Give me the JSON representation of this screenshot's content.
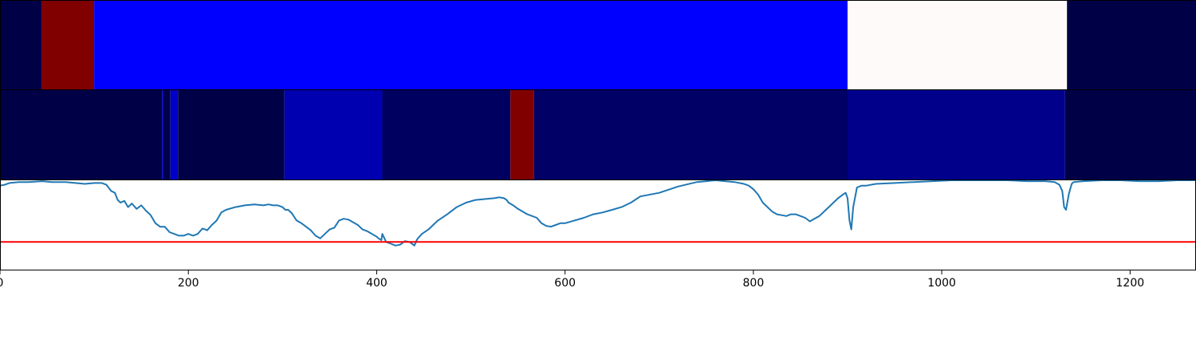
{
  "chart_data": {
    "type": "line",
    "title": "",
    "xlabel": "",
    "ylabel": "",
    "xlim": [
      0,
      1270
    ],
    "xticks": [
      0,
      200,
      400,
      600,
      800,
      1000,
      1200
    ],
    "x_tick_labels": [
      "0",
      "200",
      "400",
      "600",
      "800",
      "1000",
      "1200"
    ],
    "grid": false,
    "legend": "none",
    "strips": [
      {
        "segments": [
          {
            "from": 0,
            "to": 44,
            "color": "#000047"
          },
          {
            "from": 44,
            "to": 100,
            "color": "#800000"
          },
          {
            "from": 100,
            "to": 900,
            "color": "#0000ff"
          },
          {
            "from": 900,
            "to": 1133,
            "color": "#fffafa"
          },
          {
            "from": 1133,
            "to": 1270,
            "color": "#000047"
          }
        ]
      },
      {
        "segments": [
          {
            "from": 0,
            "to": 172,
            "color": "#000047"
          },
          {
            "from": 172,
            "to": 174,
            "color": "#0000b0"
          },
          {
            "from": 174,
            "to": 181,
            "color": "#000047"
          },
          {
            "from": 181,
            "to": 189,
            "color": "#0000c8"
          },
          {
            "from": 189,
            "to": 302,
            "color": "#000047"
          },
          {
            "from": 302,
            "to": 406,
            "color": "#0000b0"
          },
          {
            "from": 406,
            "to": 542,
            "color": "#000060"
          },
          {
            "from": 542,
            "to": 567,
            "color": "#800000"
          },
          {
            "from": 567,
            "to": 900,
            "color": "#000066"
          },
          {
            "from": 900,
            "to": 1131,
            "color": "#00008b"
          },
          {
            "from": 1131,
            "to": 1270,
            "color": "#000047"
          }
        ]
      }
    ],
    "line_ylim": [
      0,
      100
    ],
    "series": [
      {
        "color": "#1f77b4",
        "x": [
          0,
          5,
          10,
          20,
          30,
          45,
          55,
          70,
          80,
          90,
          100,
          108,
          113,
          118,
          122,
          125,
          128,
          132,
          136,
          140,
          145,
          150,
          155,
          160,
          165,
          170,
          175,
          180,
          185,
          190,
          195,
          200,
          205,
          210,
          215,
          218,
          220,
          225,
          230,
          235,
          240,
          250,
          260,
          270,
          280,
          285,
          290,
          295,
          300,
          303,
          306,
          310,
          315,
          320,
          325,
          330,
          335,
          340,
          345,
          350,
          355,
          360,
          365,
          370,
          375,
          380,
          385,
          390,
          395,
          398,
          400,
          402,
          405,
          406,
          410,
          415,
          420,
          425,
          430,
          435,
          440,
          443,
          448,
          455,
          465,
          475,
          485,
          495,
          505,
          515,
          525,
          530,
          535,
          538,
          540,
          545,
          550,
          560,
          570,
          575,
          580,
          585,
          590,
          595,
          600,
          610,
          620,
          630,
          640,
          650,
          660,
          670,
          680,
          700,
          720,
          740,
          760,
          770,
          780,
          790,
          795,
          800,
          805,
          810,
          815,
          820,
          825,
          830,
          835,
          840,
          845,
          850,
          855,
          860,
          870,
          880,
          890,
          895,
          898,
          900,
          902,
          904,
          906,
          910,
          915,
          920,
          930,
          950,
          970,
          990,
          1010,
          1030,
          1050,
          1070,
          1090,
          1110,
          1120,
          1125,
          1128,
          1130,
          1132,
          1135,
          1138,
          1140,
          1150,
          1170,
          1190,
          1210,
          1230,
          1250,
          1270
        ],
        "y": [
          94,
          95,
          97,
          98,
          98,
          99,
          98,
          98,
          97,
          96,
          97,
          97,
          95,
          88,
          86,
          78,
          75,
          77,
          70,
          74,
          68,
          72,
          66,
          61,
          52,
          48,
          48,
          42,
          40,
          38,
          38,
          40,
          38,
          40,
          46,
          45,
          44,
          50,
          55,
          64,
          67,
          70,
          72,
          73,
          72,
          73,
          72,
          72,
          70,
          67,
          67,
          63,
          55,
          52,
          48,
          44,
          38,
          35,
          40,
          45,
          47,
          55,
          57,
          56,
          53,
          50,
          45,
          43,
          40,
          38,
          37,
          35,
          33,
          40,
          31,
          29,
          27,
          28,
          32,
          31,
          27,
          34,
          40,
          45,
          55,
          62,
          70,
          75,
          78,
          79,
          80,
          81,
          80,
          78,
          75,
          72,
          68,
          62,
          58,
          52,
          49,
          48,
          50,
          52,
          52,
          55,
          58,
          62,
          64,
          67,
          70,
          75,
          82,
          86,
          93,
          98,
          100,
          99,
          98,
          96,
          94,
          90,
          84,
          75,
          70,
          65,
          62,
          61,
          60,
          62,
          62,
          60,
          58,
          54,
          60,
          70,
          80,
          84,
          86,
          80,
          55,
          45,
          70,
          92,
          94,
          94,
          96,
          97,
          98,
          99,
          100,
          100,
          100,
          100,
          99,
          99,
          98,
          95,
          88,
          70,
          67,
          85,
          96,
          98,
          99,
          100,
          100,
          99,
          99,
          100,
          100
        ]
      },
      {
        "color": "#ff0000",
        "x": [
          0,
          1270
        ],
        "y": [
          31,
          31
        ]
      }
    ]
  }
}
